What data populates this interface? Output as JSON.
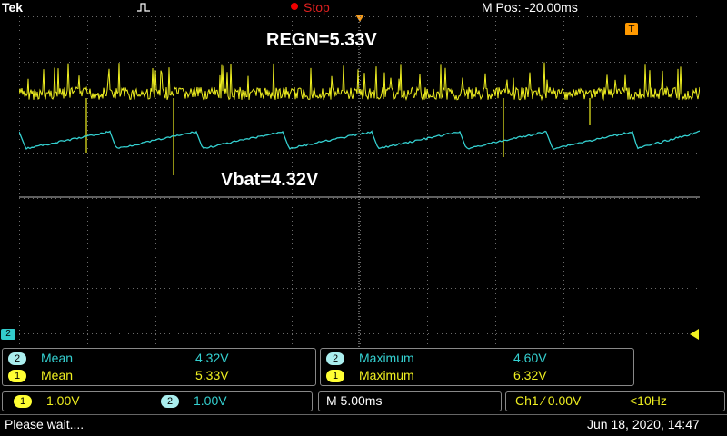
{
  "top": {
    "brand": "Tek",
    "acq_state": "Stop",
    "mpos": "M Pos: -20.00ms"
  },
  "trace_labels": {
    "regn": "REGN=5.33V",
    "vbat": "Vbat=4.32V"
  },
  "channel_marker": "2",
  "trigger_marker": "T",
  "measurements": {
    "left": [
      {
        "ch": "2",
        "name": "Mean",
        "value": "4.32V",
        "color": "#34d0d0"
      },
      {
        "ch": "1",
        "name": "Mean",
        "value": "5.33V",
        "color": "#f0f020"
      }
    ],
    "right": [
      {
        "ch": "2",
        "name": "Maximum",
        "value": "4.60V",
        "color": "#34d0d0"
      },
      {
        "ch": "1",
        "name": "Maximum",
        "value": "6.32V",
        "color": "#f0f020"
      }
    ]
  },
  "bottom": {
    "ch1_badge": "1",
    "ch1_scale": "1.00V",
    "ch2_badge": "2",
    "ch2_scale": "1.00V",
    "timebase": "M 5.00ms",
    "trigger": "Ch1 ⁄ 0.00V",
    "freq": "<10Hz"
  },
  "status": {
    "message": "Please wait....",
    "datetime": "Jun 18, 2020, 14:47"
  },
  "colors": {
    "ch1": "#f0f020",
    "ch2": "#34d0d0",
    "grid": "#7a7a7a",
    "stop": "#e02020",
    "trigger": "#f39a1c"
  }
}
